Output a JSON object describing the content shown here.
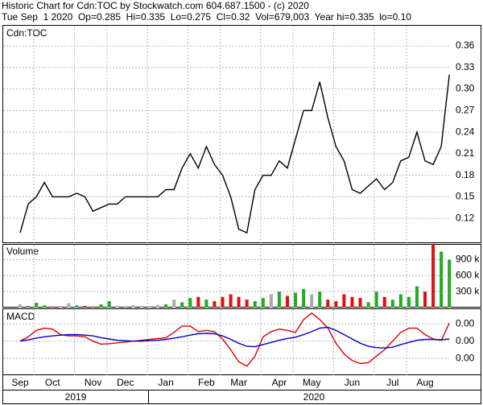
{
  "header": {
    "line1": "Historic Chart for Cdn:TOC by Stockwatch.com 604.687.1500 - (c) 2020",
    "line2": "Tue Sep  1 2020  Op=0.285  Hi=0.335  Lo=0.275  Cl=0.32  Vol=679,003  Year hi=0.335  lo=0.10"
  },
  "chart_data": [
    {
      "type": "line",
      "label": "Cdn:TOC",
      "color": "#000000",
      "values": [
        0.1,
        0.14,
        0.15,
        0.17,
        0.15,
        0.15,
        0.15,
        0.155,
        0.15,
        0.13,
        0.135,
        0.14,
        0.14,
        0.15,
        0.15,
        0.15,
        0.15,
        0.15,
        0.16,
        0.16,
        0.19,
        0.21,
        0.19,
        0.22,
        0.195,
        0.18,
        0.15,
        0.105,
        0.1,
        0.16,
        0.18,
        0.18,
        0.2,
        0.19,
        0.23,
        0.27,
        0.27,
        0.31,
        0.26,
        0.22,
        0.2,
        0.16,
        0.155,
        0.165,
        0.175,
        0.16,
        0.17,
        0.2,
        0.205,
        0.24,
        0.2,
        0.195,
        0.22,
        0.32
      ],
      "ylim": [
        0.0855,
        0.388
      ],
      "yticks": [
        0.12,
        0.15,
        0.18,
        0.21,
        0.24,
        0.27,
        {
          "value": 0.3,
          "label": "0.30"
        },
        0.33,
        0.36
      ],
      "grid": true
    },
    {
      "type": "bar",
      "label": "Volume",
      "up_color": "#22aa22",
      "down_color": "#dd1111",
      "flat_color": "#aaaaaa",
      "values": [
        60000,
        30000,
        90000,
        40000,
        20000,
        30000,
        80000,
        40000,
        30000,
        20000,
        60000,
        120000,
        30000,
        20000,
        40000,
        30000,
        30000,
        50000,
        60000,
        150000,
        100000,
        180000,
        200000,
        150000,
        120000,
        200000,
        250000,
        200000,
        150000,
        120000,
        180000,
        250000,
        300000,
        220000,
        280000,
        350000,
        250000,
        300000,
        150000,
        120000,
        250000,
        200000,
        180000,
        100000,
        300000,
        200000,
        150000,
        250000,
        200000,
        400000,
        300000,
        1200000,
        1050000,
        900000
      ],
      "ylim": [
        0,
        1180000
      ],
      "yticks": [
        {
          "value": 300000,
          "label": "300 k"
        },
        {
          "value": 600000,
          "label": "600 k"
        },
        {
          "value": 900000,
          "label": "900 k"
        }
      ],
      "grid": true
    },
    {
      "type": "line",
      "label": "MACD",
      "categories": [
        "Sep",
        null,
        null,
        null,
        "Oct",
        null,
        null,
        null,
        null,
        "Nov",
        null,
        null,
        null,
        "Dec",
        null,
        null,
        null,
        null,
        "Jan",
        null,
        null,
        null,
        null,
        "Feb",
        null,
        null,
        null,
        "Mar",
        null,
        null,
        null,
        null,
        "Apr",
        null,
        null,
        null,
        "May",
        null,
        null,
        null,
        null,
        "Jun",
        null,
        null,
        null,
        null,
        "Jul",
        null,
        null,
        null,
        "Aug",
        null,
        null,
        null
      ],
      "x_groups": [
        "2019",
        "2020"
      ],
      "series": [
        {
          "color": "#dd0000",
          "values": [
            0,
            0.001,
            0.0025,
            0.003,
            0.0028,
            0.0015,
            0.0012,
            0.0012,
            0.001,
            0,
            -0.0007,
            -0.0006,
            -0.0004,
            -0.0002,
            0,
            0.0002,
            0.0004,
            0.0006,
            0.0008,
            0.002,
            0.0035,
            0.0035,
            0.0022,
            0.0025,
            0.0022,
            0.0005,
            -0.002,
            -0.0048,
            -0.0058,
            -0.0035,
            0.001,
            0.0022,
            0.0028,
            0.0025,
            0.002,
            0.005,
            0.0065,
            0.005,
            0.003,
            -0.0005,
            -0.003,
            -0.0045,
            -0.0052,
            -0.005,
            -0.0035,
            -0.002,
            0,
            0.002,
            0.003,
            0.003,
            0.0015,
            0.0005,
            0.0002,
            0.0042
          ]
        },
        {
          "color": "#0000cc",
          "values": [
            0,
            0.0003,
            0.0007,
            0.001,
            0.0012,
            0.0014,
            0.0015,
            0.0015,
            0.0014,
            0.0012,
            0.0008,
            0.0005,
            0.0002,
            0.0001,
            0,
            0,
            0.0001,
            0.0002,
            0.0004,
            0.0007,
            0.001,
            0.0014,
            0.0017,
            0.0018,
            0.0017,
            0.0012,
            0.0004,
            -0.0005,
            -0.0012,
            -0.0013,
            -0.0008,
            -0.0003,
            0.0002,
            0.0006,
            0.0009,
            0.0015,
            0.0022,
            0.003,
            0.0032,
            0.0025,
            0.0015,
            0.0005,
            -0.0005,
            -0.0012,
            -0.0015,
            -0.0016,
            -0.0014,
            -0.0008,
            -0.0003,
            0.0002,
            0.0004,
            0.0004,
            0.0003,
            0.0005
          ]
        }
      ],
      "ylim": [
        -0.0079,
        0.0074
      ],
      "yticks": [
        {
          "value": 0.004,
          "label": "0.00"
        },
        {
          "value": 0,
          "label": "0.00"
        },
        {
          "value": -0.004,
          "label": "0.00"
        }
      ],
      "grid": true
    }
  ]
}
